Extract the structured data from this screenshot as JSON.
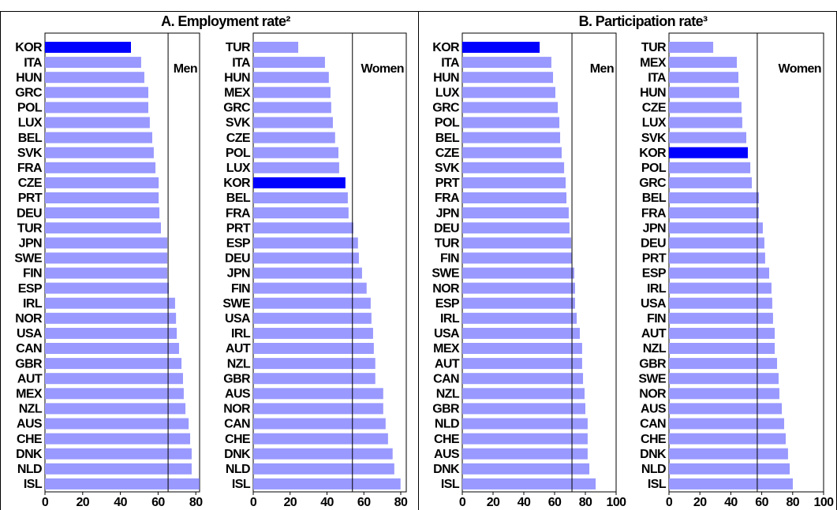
{
  "chart_data": [
    {
      "type": "bar",
      "title": "A. Employment rate²",
      "label": "Men",
      "color": "#9999ff",
      "highlight_color": "#0000ff",
      "highlight_index": 0,
      "categories": [
        "KOR",
        "ITA",
        "HUN",
        "GRC",
        "POL",
        "LUX",
        "BEL",
        "SVK",
        "FRA",
        "CZE",
        "PRT",
        "DEU",
        "TUR",
        "JPN",
        "SWE",
        "FIN",
        "ESP",
        "IRL",
        "NOR",
        "USA",
        "CAN",
        "GBR",
        "AUT",
        "MEX",
        "NZL",
        "AUS",
        "CHE",
        "DNK",
        "NLD",
        "ISL"
      ],
      "values": [
        45.6,
        51,
        52.7,
        54.8,
        54.8,
        55.6,
        56.9,
        57.7,
        58.6,
        60.3,
        60.3,
        60.7,
        61.5,
        64.9,
        64.9,
        64.9,
        65.7,
        69,
        69.5,
        69.9,
        71.1,
        72.4,
        73.2,
        73.6,
        74.5,
        76.2,
        77,
        77.8,
        77.8,
        81.9
      ],
      "reference_line": 65.3,
      "xlim": [
        0,
        82
      ],
      "xticks": [
        0,
        20,
        40,
        60,
        80
      ]
    },
    {
      "type": "bar",
      "label": "Women",
      "color": "#9999ff",
      "highlight_color": "#0000ff",
      "highlight_index": 9,
      "categories": [
        "TUR",
        "ITA",
        "HUN",
        "MEX",
        "GRC",
        "SVK",
        "CZE",
        "POL",
        "LUX",
        "KOR",
        "BEL",
        "FRA",
        "PRT",
        "ESP",
        "DEU",
        "JPN",
        "FIN",
        "SWE",
        "USA",
        "IRL",
        "AUT",
        "NZL",
        "GBR",
        "AUS",
        "NOR",
        "CAN",
        "CHE",
        "DNK",
        "NLD",
        "ISL"
      ],
      "values": [
        24.4,
        38.9,
        41,
        41.9,
        42.3,
        43.2,
        44.4,
        46.2,
        46.6,
        50,
        51.3,
        51.7,
        54.3,
        56.8,
        57.3,
        59,
        61.5,
        63.7,
        64.1,
        65,
        65.4,
        66.2,
        66.2,
        70.5,
        70.5,
        71.8,
        73.1,
        75.6,
        76.5,
        79.9
      ],
      "reference_line": 53.8,
      "xlim": [
        0,
        83
      ],
      "xticks": [
        0,
        20,
        40,
        60,
        80
      ]
    },
    {
      "type": "bar",
      "title": "B. Participation rate³",
      "label": "Men",
      "color": "#9999ff",
      "highlight_color": "#0000ff",
      "highlight_index": 0,
      "categories": [
        "KOR",
        "ITA",
        "HUN",
        "LUX",
        "GRC",
        "POL",
        "BEL",
        "CZE",
        "SVK",
        "PRT",
        "FRA",
        "JPN",
        "DEU",
        "TUR",
        "FIN",
        "SWE",
        "NOR",
        "ESP",
        "IRL",
        "USA",
        "MEX",
        "AUT",
        "CAN",
        "NZL",
        "GBR",
        "NLD",
        "CHE",
        "AUS",
        "DNK",
        "ISL"
      ],
      "values": [
        50.3,
        57.9,
        59,
        60.5,
        62.1,
        63.1,
        63.6,
        64.6,
        66.2,
        67.2,
        67.7,
        69.2,
        69.7,
        70.8,
        71.3,
        72.8,
        73.3,
        73.3,
        74.4,
        76.4,
        77.9,
        77.9,
        78.5,
        79.5,
        80,
        81.5,
        81.5,
        81.5,
        82.6,
        86.7
      ],
      "reference_line": 71.3,
      "xlim": [
        0,
        100
      ],
      "xticks": [
        0,
        20,
        40,
        60,
        80,
        100
      ]
    },
    {
      "type": "bar",
      "label": "Women",
      "color": "#9999ff",
      "highlight_color": "#0000ff",
      "highlight_index": 7,
      "categories": [
        "TUR",
        "MEX",
        "ITA",
        "HUN",
        "CZE",
        "LUX",
        "SVK",
        "KOR",
        "POL",
        "GRC",
        "BEL",
        "FRA",
        "JPN",
        "DEU",
        "PRT",
        "ESP",
        "IRL",
        "USA",
        "FIN",
        "AUT",
        "NZL",
        "GBR",
        "SWE",
        "NOR",
        "AUS",
        "CAN",
        "CHE",
        "DNK",
        "NLD",
        "ISL"
      ],
      "values": [
        28.6,
        43.9,
        44.9,
        45.4,
        46.9,
        47.4,
        50,
        51,
        52.6,
        53.6,
        58.2,
        58.2,
        60.7,
        61.7,
        62.2,
        64.8,
        66.3,
        66.8,
        67.3,
        68.4,
        68.4,
        69.9,
        70.9,
        71.4,
        73,
        74.5,
        75.5,
        77,
        78.1,
        80.1
      ],
      "reference_line": 57.1,
      "xlim": [
        0,
        100
      ],
      "xticks": [
        0,
        20,
        40,
        60,
        80,
        100
      ]
    }
  ]
}
